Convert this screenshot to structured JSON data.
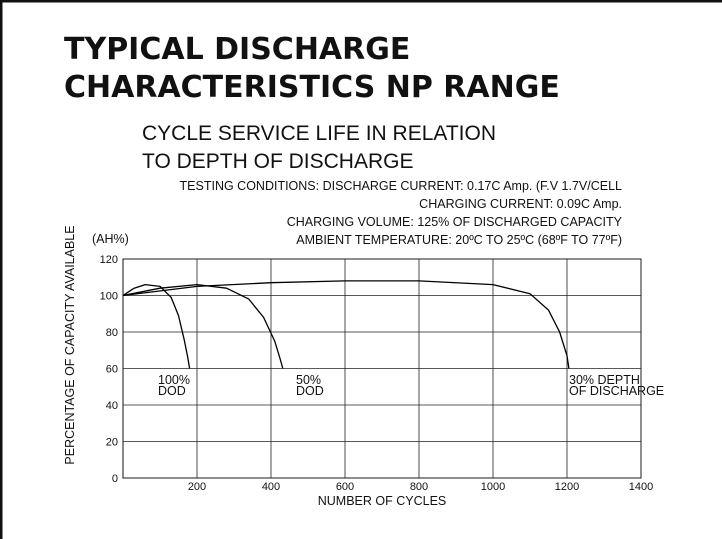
{
  "chart_data": {
    "type": "line",
    "title": [
      "TYPICAL DISCHARGE",
      "CHARACTERISTICS NP RANGE"
    ],
    "subtitle": [
      "CYCLE SERVICE LIFE IN RELATION",
      "TO DEPTH OF  DISCHARGE"
    ],
    "conditions": [
      "TESTING CONDITIONS: DISCHARGE CURRENT: 0.17C Amp. (F.V 1.7V/CELL",
      "CHARGING CURRENT: 0.09C Amp.",
      "CHARGING VOLUME: 125% OF DISCHARGED CAPACITY",
      "AMBIENT TEMPERATURE: 20ºC TO 25ºC (68ºF TO 77ºF)"
    ],
    "x_label": "NUMBER OF CYCLES",
    "y_label": "PERCENTAGE OF CAPACITY AVAILABLE",
    "y_unit": "(AH%)",
    "xlim": [
      0,
      1400
    ],
    "xticks": [
      200,
      400,
      600,
      800,
      1000,
      1200,
      1400
    ],
    "ylim": [
      0,
      120
    ],
    "yticks": [
      0,
      20,
      40,
      60,
      80,
      100,
      120
    ],
    "grid": true,
    "series": [
      {
        "name": [
          "100%",
          "DOD"
        ],
        "color": "#000000",
        "x": [
          0,
          30,
          60,
          100,
          130,
          150,
          165,
          175,
          180
        ],
        "values": [
          100,
          104,
          106,
          105,
          99,
          89,
          76,
          66,
          60
        ]
      },
      {
        "name": [
          "50%",
          "DOD"
        ],
        "color": "#000000",
        "x": [
          0,
          100,
          200,
          280,
          340,
          380,
          410,
          425,
          432
        ],
        "values": [
          100,
          104,
          106,
          104,
          98,
          88,
          75,
          65,
          60
        ]
      },
      {
        "name": [
          "30% DEPTH",
          "OF DISCHARGE"
        ],
        "color": "#000000",
        "x": [
          0,
          200,
          400,
          600,
          800,
          1000,
          1100,
          1150,
          1180,
          1200,
          1205
        ],
        "values": [
          100,
          105,
          107,
          108,
          108,
          106,
          101,
          92,
          80,
          67,
          60
        ]
      }
    ]
  }
}
